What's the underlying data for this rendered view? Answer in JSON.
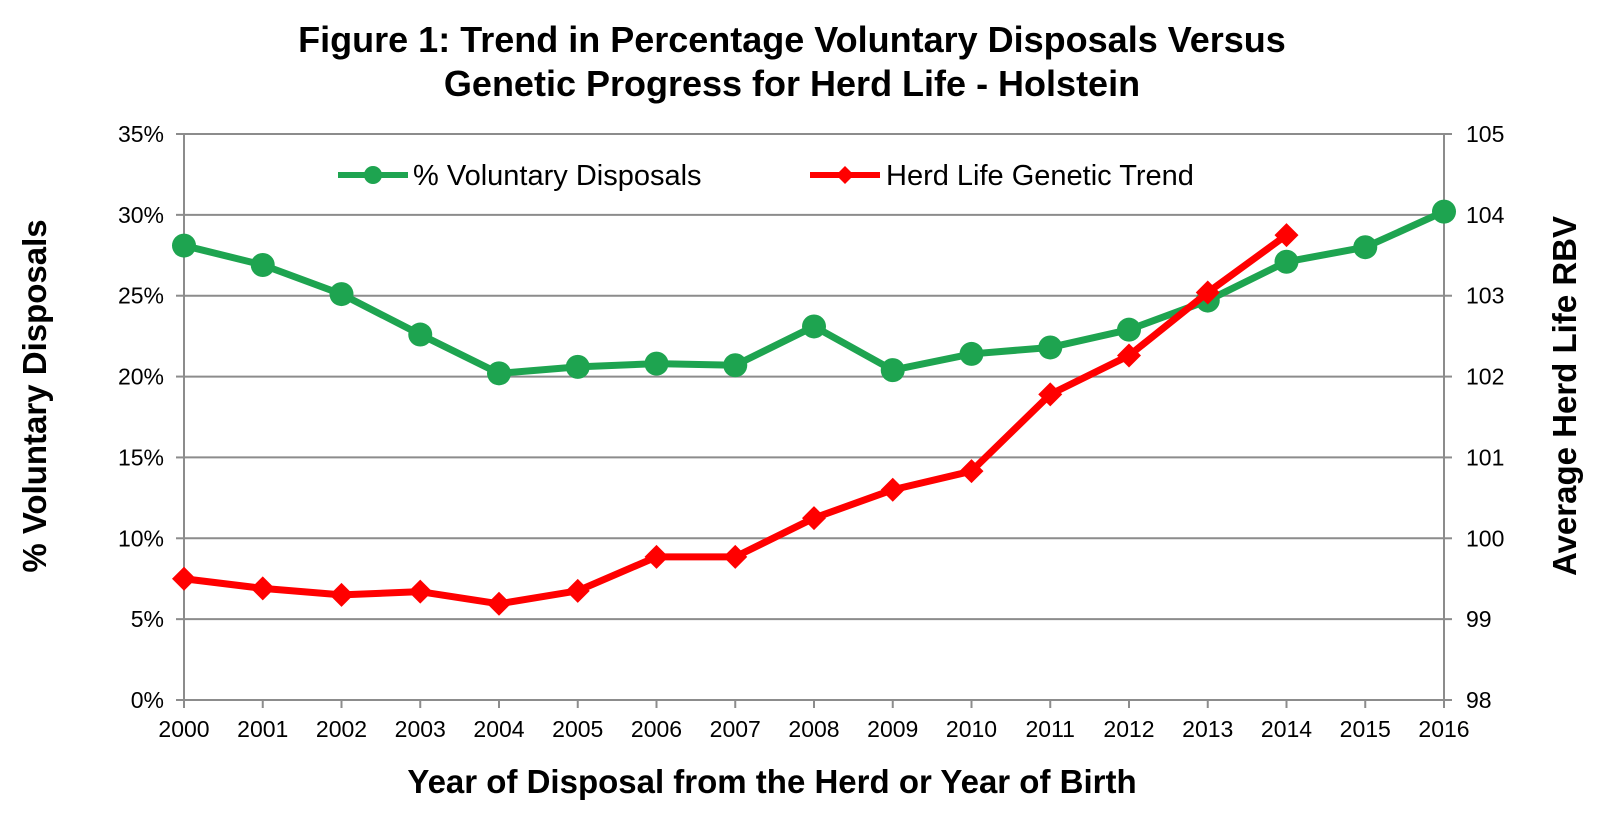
{
  "chart_data": {
    "type": "line",
    "title_lines": [
      "Figure 1: Trend in Percentage Voluntary Disposals Versus",
      "Genetic Progress for Herd Life - Holstein"
    ],
    "xlabel": "Year of Disposal from the Herd or Year of Birth",
    "ylabel_left": "% Voluntary Disposals",
    "ylabel_right": "Average Herd Life RBV",
    "categories": [
      "2000",
      "2001",
      "2002",
      "2003",
      "2004",
      "2005",
      "2006",
      "2007",
      "2008",
      "2009",
      "2010",
      "2011",
      "2012",
      "2013",
      "2014",
      "2015",
      "2016"
    ],
    "y_left": {
      "lim": [
        0,
        35
      ],
      "ticks": [
        0,
        5,
        10,
        15,
        20,
        25,
        30,
        35
      ],
      "tick_labels": [
        "0%",
        "5%",
        "10%",
        "15%",
        "20%",
        "25%",
        "30%",
        "35%"
      ]
    },
    "y_right": {
      "lim": [
        98,
        105
      ],
      "ticks": [
        98,
        99,
        100,
        101,
        102,
        103,
        104,
        105
      ],
      "tick_labels": [
        "98",
        "99",
        "100",
        "101",
        "102",
        "103",
        "104",
        "105"
      ]
    },
    "grid": true,
    "legend_position": "top",
    "series": [
      {
        "name": "% Voluntary Disposals",
        "axis": "left",
        "color": "#1ea450",
        "marker": "circle",
        "values": [
          28.1,
          26.9,
          25.1,
          22.6,
          20.2,
          20.6,
          20.8,
          20.7,
          23.1,
          20.4,
          21.4,
          21.8,
          22.9,
          24.7,
          27.1,
          28.0,
          30.2
        ]
      },
      {
        "name": "Herd Life Genetic Trend",
        "axis": "right",
        "color": "#ff0000",
        "marker": "diamond",
        "values": [
          99.5,
          99.38,
          99.3,
          99.34,
          99.19,
          99.35,
          99.77,
          99.77,
          100.25,
          100.6,
          100.83,
          101.78,
          102.26,
          103.04,
          103.75,
          null,
          null
        ]
      }
    ]
  }
}
